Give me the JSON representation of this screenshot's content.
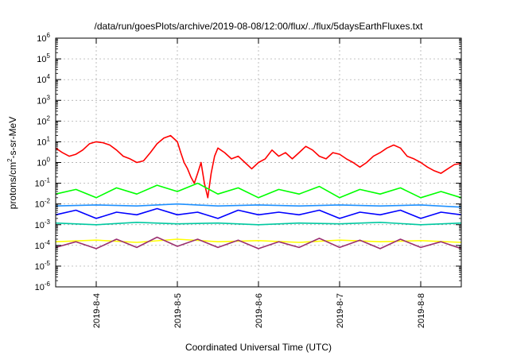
{
  "chart_data": {
    "type": "line",
    "title": "/data/run/goesPlots/archive/2019-08-08/12:00/flux/../flux/5daysEarthFluxes.txt",
    "xlabel": "Coordinated Universal Time (UTC)",
    "ylabel": "protons/cm²-s-sr-MeV",
    "ylabel_parts": {
      "pre": "protons/cm",
      "sup": "2",
      "post": "-s-sr-MeV"
    },
    "y_scale": "log",
    "ylim": [
      1e-06,
      1000000.0
    ],
    "y_ticks": [
      {
        "base": "10",
        "exp": "-6"
      },
      {
        "base": "10",
        "exp": "-5"
      },
      {
        "base": "10",
        "exp": "-4"
      },
      {
        "base": "10",
        "exp": "-3"
      },
      {
        "base": "10",
        "exp": "-2"
      },
      {
        "base": "10",
        "exp": "-1"
      },
      {
        "base": "10",
        "exp": "0"
      },
      {
        "base": "10",
        "exp": "1"
      },
      {
        "base": "10",
        "exp": "2"
      },
      {
        "base": "10",
        "exp": "3"
      },
      {
        "base": "10",
        "exp": "4"
      },
      {
        "base": "10",
        "exp": "5"
      },
      {
        "base": "10",
        "exp": "6"
      }
    ],
    "xlim": [
      "2019-08-03T12:00",
      "2019-08-08T12:00"
    ],
    "x_ticks": [
      "2019-8-4",
      "2019-8-5",
      "2019-8-6",
      "2019-8-7",
      "2019-8-8"
    ],
    "grid": true,
    "series": [
      {
        "color": "#ff0000",
        "x": [
          "2019-08-03T12:00",
          "2019-08-03T14:00",
          "2019-08-03T16:00",
          "2019-08-03T18:00",
          "2019-08-03T20:00",
          "2019-08-03T22:00",
          "2019-08-04T00:00",
          "2019-08-04T02:00",
          "2019-08-04T04:00",
          "2019-08-04T06:00",
          "2019-08-04T08:00",
          "2019-08-04T10:00",
          "2019-08-04T12:00",
          "2019-08-04T14:00",
          "2019-08-04T16:00",
          "2019-08-04T18:00",
          "2019-08-04T20:00",
          "2019-08-04T22:00",
          "2019-08-05T00:00",
          "2019-08-05T01:00",
          "2019-08-05T02:00",
          "2019-08-05T03:00",
          "2019-08-05T04:00",
          "2019-08-05T05:00",
          "2019-08-05T06:00",
          "2019-08-05T07:00",
          "2019-08-05T08:00",
          "2019-08-05T09:00",
          "2019-08-05T10:00",
          "2019-08-05T11:00",
          "2019-08-05T12:00",
          "2019-08-05T14:00",
          "2019-08-05T16:00",
          "2019-08-05T18:00",
          "2019-08-05T20:00",
          "2019-08-05T22:00",
          "2019-08-06T00:00",
          "2019-08-06T02:00",
          "2019-08-06T04:00",
          "2019-08-06T06:00",
          "2019-08-06T08:00",
          "2019-08-06T10:00",
          "2019-08-06T12:00",
          "2019-08-06T14:00",
          "2019-08-06T16:00",
          "2019-08-06T18:00",
          "2019-08-06T20:00",
          "2019-08-06T22:00",
          "2019-08-07T00:00",
          "2019-08-07T02:00",
          "2019-08-07T04:00",
          "2019-08-07T06:00",
          "2019-08-07T08:00",
          "2019-08-07T10:00",
          "2019-08-07T12:00",
          "2019-08-07T14:00",
          "2019-08-07T16:00",
          "2019-08-07T18:00",
          "2019-08-07T20:00",
          "2019-08-07T22:00",
          "2019-08-08T00:00",
          "2019-08-08T02:00",
          "2019-08-08T04:00",
          "2019-08-08T06:00",
          "2019-08-08T08:00",
          "2019-08-08T10:00",
          "2019-08-08T12:00"
        ],
        "y": [
          5,
          3,
          2,
          2.5,
          4,
          8,
          10,
          9,
          7,
          4,
          2,
          1.5,
          1,
          1.2,
          3,
          8,
          15,
          20,
          10,
          3,
          1,
          0.5,
          0.2,
          0.1,
          0.3,
          1,
          0.1,
          0.02,
          0.3,
          2,
          5,
          3,
          1.5,
          2,
          1,
          0.5,
          1,
          1.5,
          4,
          2,
          3,
          1.5,
          3,
          6,
          4,
          2,
          1.5,
          3,
          2.5,
          1.5,
          1,
          0.6,
          1,
          2,
          3,
          5,
          7,
          5,
          2,
          1.5,
          1,
          0.6,
          0.4,
          0.3,
          0.5,
          0.8,
          0.9
        ]
      },
      {
        "color": "#00ff00",
        "x": [
          "2019-08-03T12:00",
          "2019-08-03T18:00",
          "2019-08-04T00:00",
          "2019-08-04T06:00",
          "2019-08-04T12:00",
          "2019-08-04T18:00",
          "2019-08-05T00:00",
          "2019-08-05T06:00",
          "2019-08-05T12:00",
          "2019-08-05T18:00",
          "2019-08-06T00:00",
          "2019-08-06T06:00",
          "2019-08-06T12:00",
          "2019-08-06T18:00",
          "2019-08-07T00:00",
          "2019-08-07T06:00",
          "2019-08-07T12:00",
          "2019-08-07T18:00",
          "2019-08-08T00:00",
          "2019-08-08T06:00",
          "2019-08-08T12:00"
        ],
        "y": [
          0.03,
          0.05,
          0.02,
          0.06,
          0.03,
          0.08,
          0.04,
          0.1,
          0.03,
          0.06,
          0.02,
          0.05,
          0.03,
          0.07,
          0.02,
          0.05,
          0.03,
          0.06,
          0.02,
          0.04,
          0.02
        ]
      },
      {
        "color": "#1e90ff",
        "x": [
          "2019-08-03T12:00",
          "2019-08-04T00:00",
          "2019-08-04T12:00",
          "2019-08-05T00:00",
          "2019-08-05T12:00",
          "2019-08-06T00:00",
          "2019-08-06T12:00",
          "2019-08-07T00:00",
          "2019-08-07T12:00",
          "2019-08-08T00:00",
          "2019-08-08T12:00"
        ],
        "y": [
          0.008,
          0.009,
          0.008,
          0.01,
          0.008,
          0.009,
          0.008,
          0.009,
          0.008,
          0.009,
          0.007
        ]
      },
      {
        "color": "#0000ff",
        "x": [
          "2019-08-03T12:00",
          "2019-08-03T18:00",
          "2019-08-04T00:00",
          "2019-08-04T06:00",
          "2019-08-04T12:00",
          "2019-08-04T18:00",
          "2019-08-05T00:00",
          "2019-08-05T06:00",
          "2019-08-05T12:00",
          "2019-08-05T18:00",
          "2019-08-06T00:00",
          "2019-08-06T06:00",
          "2019-08-06T12:00",
          "2019-08-06T18:00",
          "2019-08-07T00:00",
          "2019-08-07T06:00",
          "2019-08-07T12:00",
          "2019-08-07T18:00",
          "2019-08-08T00:00",
          "2019-08-08T06:00",
          "2019-08-08T12:00"
        ],
        "y": [
          0.003,
          0.005,
          0.002,
          0.004,
          0.003,
          0.006,
          0.003,
          0.004,
          0.002,
          0.005,
          0.003,
          0.004,
          0.003,
          0.005,
          0.002,
          0.004,
          0.003,
          0.005,
          0.002,
          0.004,
          0.003
        ]
      },
      {
        "color": "#00c8a0",
        "x": [
          "2019-08-03T12:00",
          "2019-08-04T00:00",
          "2019-08-04T12:00",
          "2019-08-05T00:00",
          "2019-08-05T12:00",
          "2019-08-06T00:00",
          "2019-08-06T12:00",
          "2019-08-07T00:00",
          "2019-08-07T12:00",
          "2019-08-08T00:00",
          "2019-08-08T12:00"
        ],
        "y": [
          0.0012,
          0.001,
          0.0013,
          0.0011,
          0.0012,
          0.001,
          0.0012,
          0.0011,
          0.0013,
          0.001,
          0.0012
        ]
      },
      {
        "color": "#ffff00",
        "x": [
          "2019-08-03T12:00",
          "2019-08-04T00:00",
          "2019-08-04T12:00",
          "2019-08-05T00:00",
          "2019-08-05T12:00",
          "2019-08-06T00:00",
          "2019-08-06T12:00",
          "2019-08-07T00:00",
          "2019-08-07T12:00",
          "2019-08-08T00:00",
          "2019-08-08T12:00"
        ],
        "y": [
          0.00015,
          0.00018,
          0.00014,
          0.0002,
          0.00015,
          0.00017,
          0.00014,
          0.00018,
          0.00015,
          0.00017,
          0.00014
        ]
      },
      {
        "color": "#9b3070",
        "x": [
          "2019-08-03T12:00",
          "2019-08-03T18:00",
          "2019-08-04T00:00",
          "2019-08-04T06:00",
          "2019-08-04T12:00",
          "2019-08-04T18:00",
          "2019-08-05T00:00",
          "2019-08-05T06:00",
          "2019-08-05T12:00",
          "2019-08-05T18:00",
          "2019-08-06T00:00",
          "2019-08-06T06:00",
          "2019-08-06T12:00",
          "2019-08-06T18:00",
          "2019-08-07T00:00",
          "2019-08-07T06:00",
          "2019-08-07T12:00",
          "2019-08-07T18:00",
          "2019-08-08T00:00",
          "2019-08-08T06:00",
          "2019-08-08T12:00"
        ],
        "y": [
          8e-05,
          0.00015,
          7e-05,
          0.0002,
          8e-05,
          0.00025,
          9e-05,
          0.0002,
          8e-05,
          0.00018,
          7e-05,
          0.00015,
          8e-05,
          0.00022,
          8e-05,
          0.00018,
          7e-05,
          0.0002,
          8e-05,
          0.00015,
          7e-05
        ]
      }
    ]
  }
}
